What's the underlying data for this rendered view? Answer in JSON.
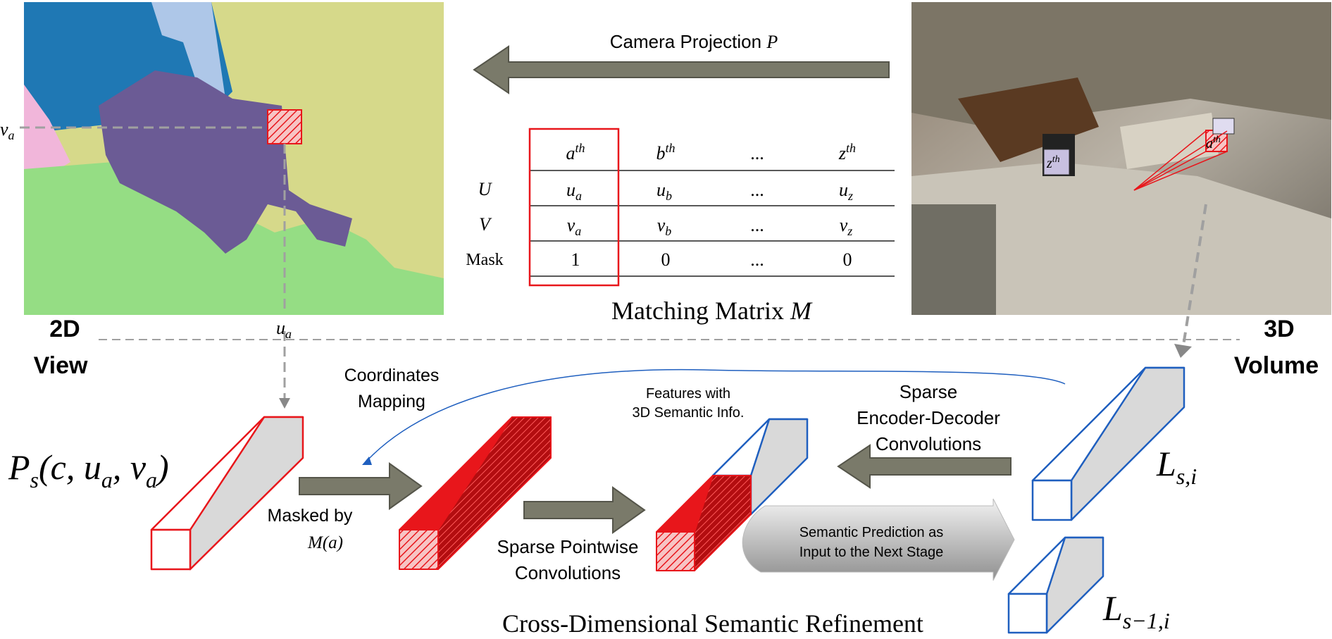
{
  "colors": {
    "red": "#e8161b",
    "blue": "#1f5fbf",
    "arrow_gray": "#7a7a6a",
    "dashed_gray": "#a0a0a0",
    "seg_blue": "#1f78b4",
    "seg_purple": "#6b5b95",
    "seg_yellow": "#d6d98a",
    "seg_green": "#95dd84",
    "seg_lightblue": "#aec7e8",
    "seg_pink": "#f1b6da"
  },
  "view2d": {
    "label_line1": "2D",
    "label_line2": "View",
    "v_label": "v",
    "v_sub": "a",
    "u_label": "u",
    "u_sub": "a"
  },
  "view3d": {
    "label_line1": "3D",
    "label_line2": "Volume",
    "tag_a": "a",
    "tag_z": "z",
    "tag_sup": "th"
  },
  "projection": {
    "label": "Camera Projection ",
    "symbol": "P"
  },
  "matrix": {
    "caption": "Matching Matrix ",
    "caption_symbol": "M",
    "headers": [
      {
        "base": "a",
        "sup": "th"
      },
      {
        "base": "b",
        "sup": "th"
      },
      {
        "base": "...",
        "sup": ""
      },
      {
        "base": "z",
        "sup": "th"
      }
    ],
    "rows": [
      {
        "label": "U",
        "cells": [
          {
            "base": "u",
            "sub": "a"
          },
          {
            "base": "u",
            "sub": "b"
          },
          {
            "base": "...",
            "sub": ""
          },
          {
            "base": "u",
            "sub": "z"
          }
        ]
      },
      {
        "label": "V",
        "cells": [
          {
            "base": "v",
            "sub": "a"
          },
          {
            "base": "v",
            "sub": "b"
          },
          {
            "base": "...",
            "sub": ""
          },
          {
            "base": "v",
            "sub": "z"
          }
        ]
      },
      {
        "label": "Mask",
        "cells": [
          {
            "base": "1",
            "sub": ""
          },
          {
            "base": "0",
            "sub": ""
          },
          {
            "base": "...",
            "sub": ""
          },
          {
            "base": "0",
            "sub": ""
          }
        ]
      }
    ]
  },
  "labels": {
    "coords_mapping_1": "Coordinates",
    "coords_mapping_2": "Mapping",
    "features_1": "Features with",
    "features_2": "3D Semantic Info.",
    "sparse_enc_1": "Sparse",
    "sparse_enc_2": "Encoder-Decoder",
    "sparse_enc_3": "Convolutions",
    "masked_by": "Masked by",
    "masked_sym": "M(a)",
    "pointwise_1": "Sparse Pointwise",
    "pointwise_2": "Convolutions",
    "semantic_pred_1": "Semantic Prediction as",
    "semantic_pred_2": "Input to the Next Stage",
    "bottom_title": "Cross-Dimensional Semantic Refinement"
  },
  "formulas": {
    "ps": "P",
    "ps_sub": "s",
    "ps_args": "(c, u",
    "ps_args_sub1": "a",
    "ps_args_mid": ", v",
    "ps_args_sub2": "a",
    "ps_close": ")",
    "lsi": "L",
    "lsi_sub": "s,i",
    "ls1i": "L",
    "ls1i_sub": "s−1,i"
  }
}
